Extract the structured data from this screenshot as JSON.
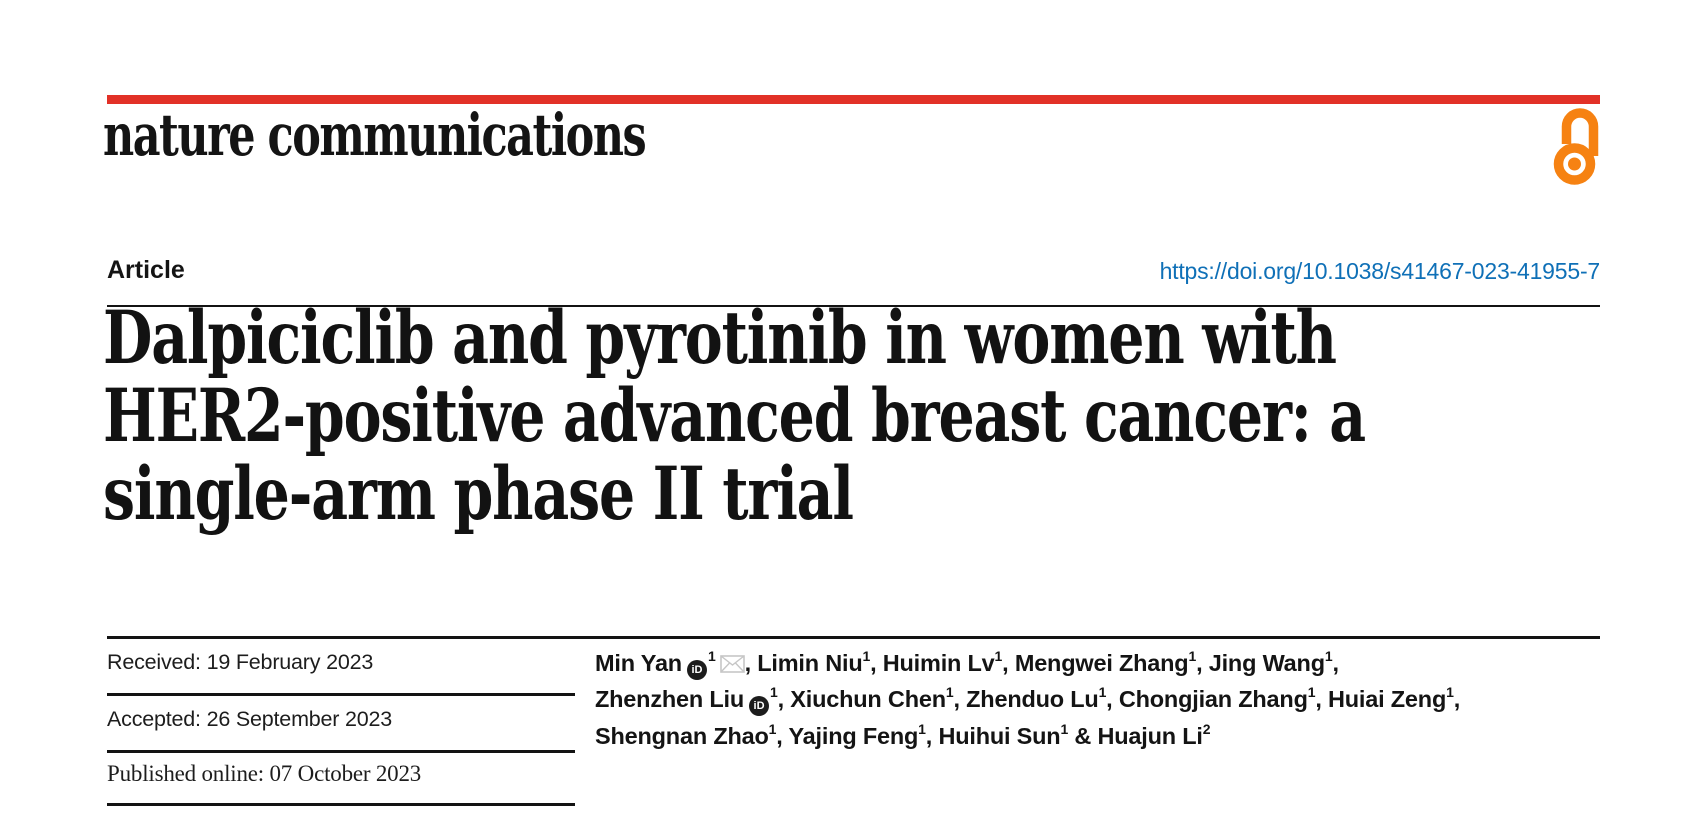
{
  "journal": {
    "wordmark": "nature communications",
    "accent_color": "#e23127"
  },
  "open_access": {
    "icon": "open-access-lock-icon",
    "color": "#f68212"
  },
  "article": {
    "type_label": "Article",
    "doi_link": "https://doi.org/10.1038/s41467-023-41955-7",
    "doi_color": "#0f70b7",
    "title_lines": [
      "Dalpiciclib and pyrotinib in women with",
      "HER2-positive advanced breast cancer: a",
      "single-arm phase II trial"
    ]
  },
  "dates": {
    "rows": [
      {
        "text": "Received: 19 February 2023"
      },
      {
        "text": "Accepted: 26 September 2023"
      },
      {
        "text": "Published online: 07 October 2023"
      }
    ]
  },
  "authors": {
    "orcid_icon_label": "iD",
    "lines": [
      {
        "items": [
          {
            "name": "Min Yan",
            "sup": "1",
            "orcid": true,
            "email": true,
            "trail": ", "
          },
          {
            "name": "Limin Niu",
            "sup": "1",
            "trail": ", "
          },
          {
            "name": "Huimin Lv",
            "sup": "1",
            "trail": ", "
          },
          {
            "name": "Mengwei Zhang",
            "sup": "1",
            "trail": ", "
          },
          {
            "name": "Jing Wang",
            "sup": "1",
            "trail": ","
          }
        ]
      },
      {
        "items": [
          {
            "name": "Zhenzhen Liu",
            "sup": "1",
            "orcid": true,
            "trail": ", "
          },
          {
            "name": "Xiuchun Chen",
            "sup": "1",
            "trail": ", "
          },
          {
            "name": "Zhenduo Lu",
            "sup": "1",
            "trail": ", "
          },
          {
            "name": "Chongjian Zhang",
            "sup": "1",
            "trail": ", "
          },
          {
            "name": "Huiai Zeng",
            "sup": "1",
            "trail": ","
          }
        ]
      },
      {
        "items": [
          {
            "name": "Shengnan Zhao",
            "sup": "1",
            "trail": ", "
          },
          {
            "name": "Yajing Feng",
            "sup": "1",
            "trail": ", "
          },
          {
            "name": "Huihui Sun",
            "sup": "1",
            "trail": " & "
          },
          {
            "name": "Huajun Li",
            "sup": "2",
            "trail": ""
          }
        ]
      }
    ]
  }
}
